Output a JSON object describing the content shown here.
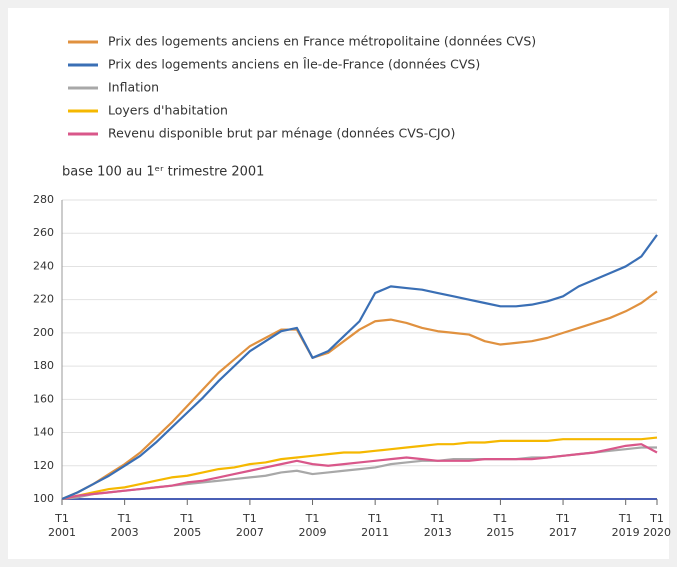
{
  "chart_data": {
    "type": "line",
    "subtitle": "base 100 au 1ᵉʳ trimestre 2001",
    "x": [
      2001,
      2001.5,
      2002,
      2002.5,
      2003,
      2003.5,
      2004,
      2004.5,
      2005,
      2005.5,
      2006,
      2006.5,
      2007,
      2007.5,
      2008,
      2008.5,
      2009,
      2009.5,
      2010,
      2010.5,
      2011,
      2011.5,
      2012,
      2012.5,
      2013,
      2013.5,
      2014,
      2014.5,
      2015,
      2015.5,
      2016,
      2016.5,
      2017,
      2017.5,
      2018,
      2018.5,
      2019,
      2019.5,
      2020
    ],
    "series": [
      {
        "name": "Prix des logements anciens en France métropolitaine (données CVS)",
        "color": "#e0913f",
        "values": [
          100,
          104,
          109,
          115,
          121,
          128,
          137,
          146,
          156,
          166,
          176,
          184,
          192,
          197,
          202,
          202,
          185,
          188,
          195,
          202,
          207,
          208,
          206,
          203,
          201,
          200,
          199,
          195,
          193,
          194,
          195,
          197,
          200,
          203,
          206,
          209,
          213,
          218,
          225
        ]
      },
      {
        "name": "Prix des logements anciens en Île-de-France (données CVS)",
        "color": "#3a6fb5",
        "values": [
          100,
          104,
          109,
          114,
          120,
          126,
          134,
          143,
          152,
          161,
          171,
          180,
          189,
          195,
          201,
          203,
          185,
          189,
          198,
          207,
          224,
          228,
          227,
          226,
          224,
          222,
          220,
          218,
          216,
          216,
          217,
          219,
          222,
          228,
          232,
          236,
          240,
          246,
          259
        ]
      },
      {
        "name": "Inflation",
        "color": "#a8a8a8",
        "values": [
          100,
          101,
          103,
          104,
          105,
          106,
          107,
          108,
          109,
          110,
          111,
          112,
          113,
          114,
          116,
          117,
          115,
          116,
          117,
          118,
          119,
          121,
          122,
          123,
          123,
          124,
          124,
          124,
          124,
          124,
          125,
          125,
          126,
          127,
          128,
          129,
          130,
          131,
          131
        ]
      },
      {
        "name": "Loyers d'habitation",
        "color": "#f5b800",
        "values": [
          100,
          102,
          104,
          106,
          107,
          109,
          111,
          113,
          114,
          116,
          118,
          119,
          121,
          122,
          124,
          125,
          126,
          127,
          128,
          128,
          129,
          130,
          131,
          132,
          133,
          133,
          134,
          134,
          135,
          135,
          135,
          135,
          136,
          136,
          136,
          136,
          136,
          136,
          137
        ]
      },
      {
        "name": "Revenu disponible brut par ménage (données CVS-CJO)",
        "color": "#d9578a",
        "values": [
          100,
          102,
          103,
          104,
          105,
          106,
          107,
          108,
          110,
          111,
          113,
          115,
          117,
          119,
          121,
          123,
          121,
          120,
          121,
          122,
          123,
          124,
          125,
          124,
          123,
          123,
          123,
          124,
          124,
          124,
          124,
          125,
          126,
          127,
          128,
          130,
          132,
          133,
          128
        ]
      }
    ],
    "xlim": [
      2001,
      2020
    ],
    "xticks": [
      {
        "value": 2001,
        "label": [
          "T1",
          "2001"
        ]
      },
      {
        "value": 2003,
        "label": [
          "T1",
          "2003"
        ]
      },
      {
        "value": 2005,
        "label": [
          "T1",
          "2005"
        ]
      },
      {
        "value": 2007,
        "label": [
          "T1",
          "2007"
        ]
      },
      {
        "value": 2009,
        "label": [
          "T1",
          "2009"
        ]
      },
      {
        "value": 2011,
        "label": [
          "T1",
          "2011"
        ]
      },
      {
        "value": 2013,
        "label": [
          "T1",
          "2013"
        ]
      },
      {
        "value": 2015,
        "label": [
          "T1",
          "2015"
        ]
      },
      {
        "value": 2017,
        "label": [
          "T1",
          "2017"
        ]
      },
      {
        "value": 2019,
        "label": [
          "T1",
          "2019"
        ]
      },
      {
        "value": 2020,
        "label": [
          "T1",
          "2020"
        ]
      }
    ],
    "ylim": [
      100,
      280
    ],
    "yticks": [
      100,
      120,
      140,
      160,
      180,
      200,
      220,
      240,
      260,
      280
    ],
    "grid": true
  }
}
